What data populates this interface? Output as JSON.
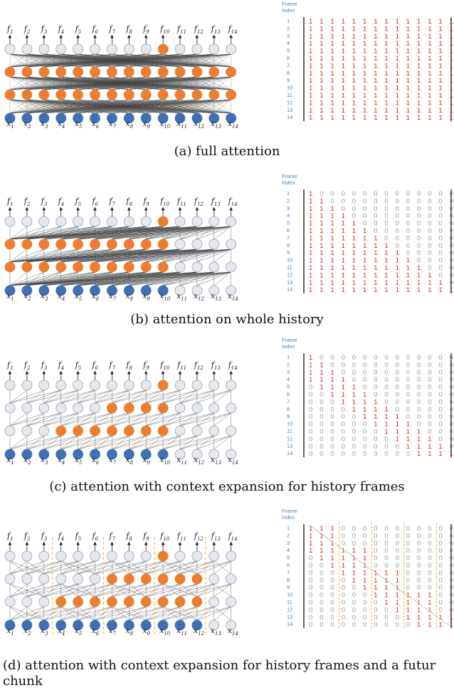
{
  "colors": {
    "input_node": "#3f6fb5",
    "active_node": "#ed7d31",
    "idle_node": "#e4e8ef",
    "one": "#e01f1f",
    "zero": "#9a9a9a",
    "index": "#4a7fc1",
    "chunk_divider": "#f0b429"
  },
  "icons": [
    "output-arrow-icon"
  ],
  "matrix_header": "Frame\nIndex",
  "panels": [
    {
      "caption": "(a) full attention",
      "pattern": "full",
      "active_hidden_1": [
        1,
        2,
        3,
        4,
        5,
        6,
        7,
        8,
        9,
        10,
        11,
        12,
        13,
        14
      ],
      "active_hidden_2": [
        1,
        2,
        3,
        4,
        5,
        6,
        7,
        8,
        9,
        10,
        11,
        12,
        13,
        14
      ],
      "active_input": [
        1,
        2,
        3,
        4,
        5,
        6,
        7,
        8,
        9,
        10,
        11,
        12,
        13,
        14
      ],
      "active_output": [
        10
      ],
      "chunk_dividers_after": []
    },
    {
      "caption": "(b) attention on whole history",
      "pattern": "history",
      "active_hidden_1": [
        1,
        2,
        3,
        4,
        5,
        6,
        7,
        8,
        9,
        10
      ],
      "active_hidden_2": [
        1,
        2,
        3,
        4,
        5,
        6,
        7,
        8,
        9,
        10
      ],
      "active_input": [
        1,
        2,
        3,
        4,
        5,
        6,
        7,
        8,
        9,
        10
      ],
      "active_output": [
        10
      ],
      "chunk_dividers_after": []
    },
    {
      "caption": "(c) attention with context expansion for history frames",
      "pattern": "expansion",
      "active_hidden_1": [
        4,
        5,
        6,
        7,
        8,
        9,
        10
      ],
      "active_hidden_2": [
        7,
        8,
        9,
        10
      ],
      "active_input": [
        1,
        2,
        3,
        4,
        5,
        6,
        7,
        8,
        9,
        10
      ],
      "active_output": [
        10
      ],
      "chunk_dividers_after": []
    },
    {
      "caption": "(d) attention with context expansion for history frames and a futur chunk",
      "pattern": "chunk",
      "active_hidden_1": [
        4,
        5,
        6,
        7,
        8,
        9,
        10,
        11,
        12
      ],
      "active_hidden_2": [
        7,
        8,
        9,
        10,
        11,
        12
      ],
      "active_input": [
        1,
        2,
        3,
        4,
        5,
        6,
        7,
        8,
        9,
        10,
        11,
        12
      ],
      "active_output": [
        10
      ],
      "chunk_dividers_after": [
        3,
        6,
        9,
        12
      ]
    }
  ]
}
